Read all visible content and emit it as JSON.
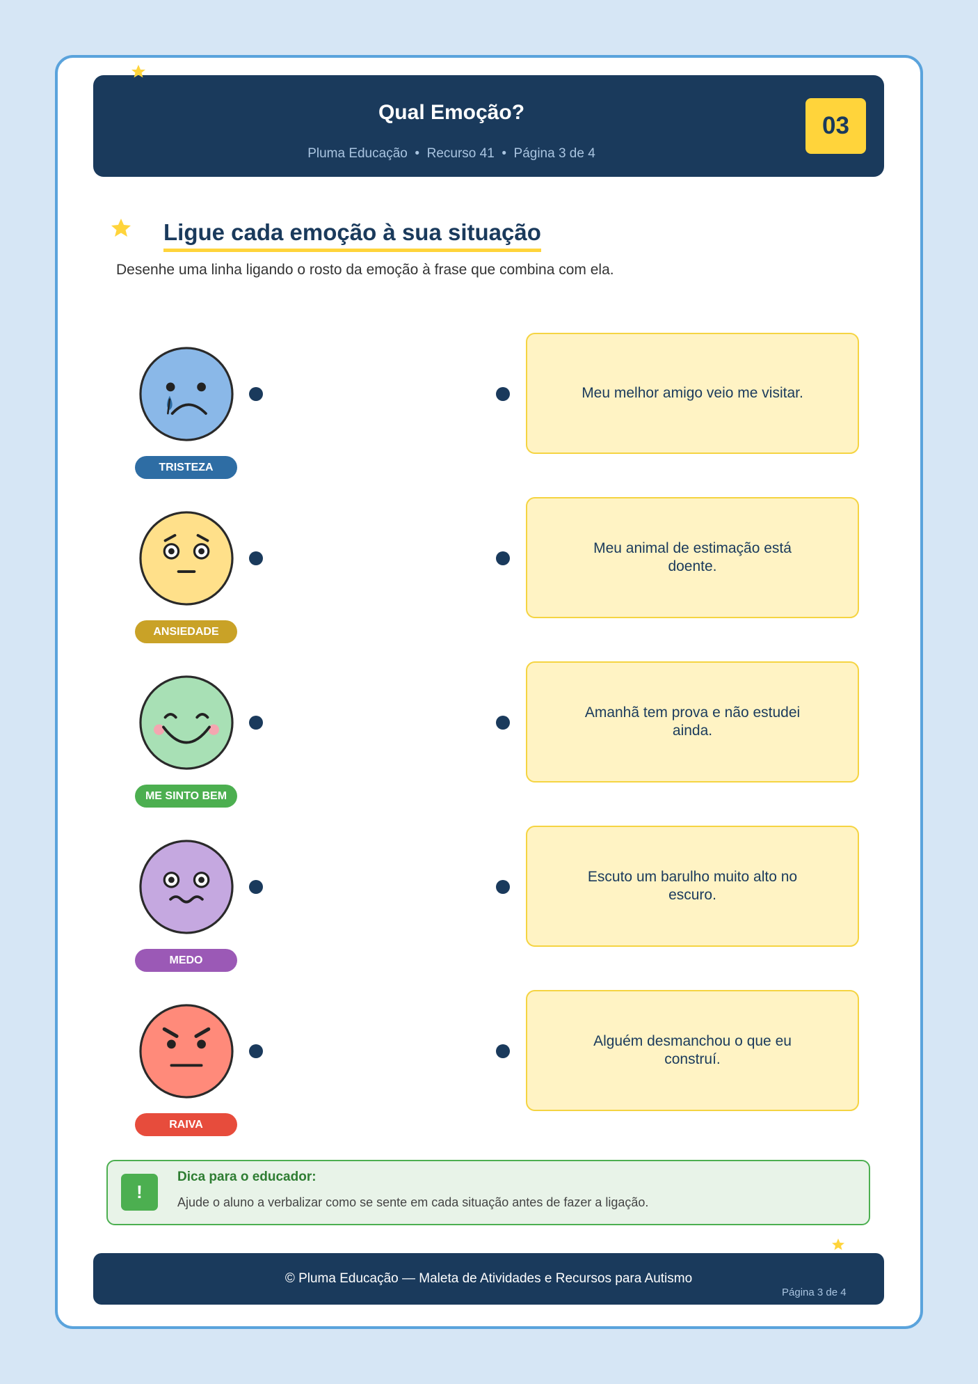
{
  "header": {
    "title": "Qual Emoção?",
    "subtitle": "Pluma Educação  •  Recurso 41  •  Página 3 de 4",
    "badge": "03"
  },
  "activity": {
    "heading": "Ligue cada emoção à sua situação",
    "instruction": "Desenhe uma linha ligando o rosto da emoção à frase que combina com ela."
  },
  "emotions": [
    "TRISTEZA",
    "ANSIEDADE",
    "ME SINTO BEM",
    "MEDO",
    "RAIVA"
  ],
  "situations": [
    "Meu melhor amigo veio me visitar.",
    "Meu animal de estimação está doente.",
    "Amanhã tem prova e não estudei ainda.",
    "Escuto um barulho muito alto no escuro.",
    "Alguém desmanchou o que eu construí."
  ],
  "tip": {
    "icon": "!",
    "title": "Dica para o educador:",
    "text": "Ajude o aluno a verbalizar como se sente em cada situação antes de fazer a ligação."
  },
  "footer": {
    "text": "© Pluma Educação — Maleta de Atividades e Recursos para Autismo",
    "page": "Página 3 de 4"
  }
}
